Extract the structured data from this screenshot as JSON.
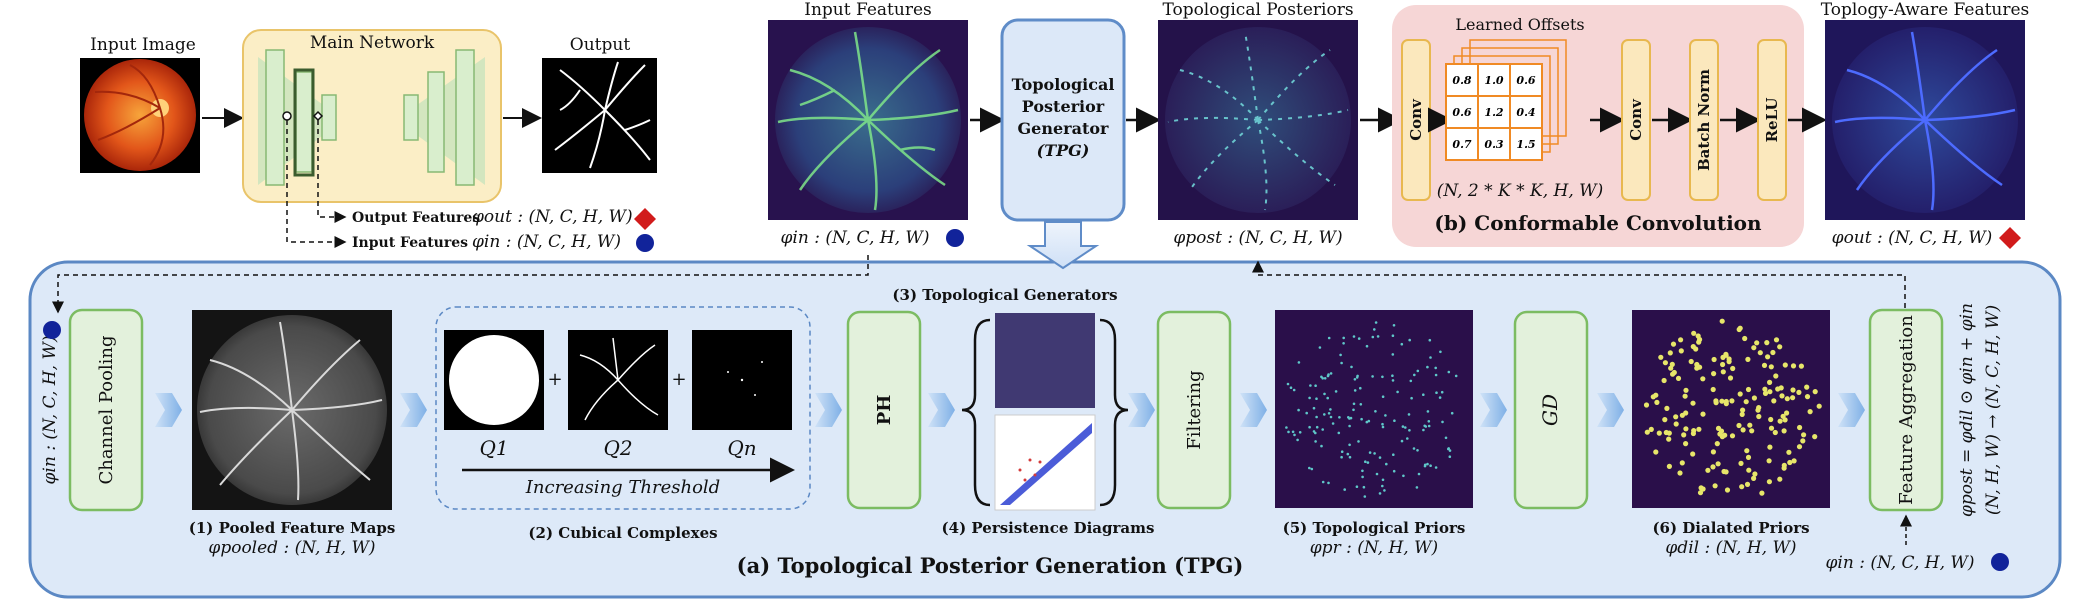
{
  "top": {
    "input_image_label": "Input Image",
    "main_network_label": "Main Network",
    "output_label": "Output",
    "output_features_label": "Output Features",
    "output_features_math": "φout : (N, C, H, W)",
    "input_features_label": "Input Features",
    "input_features_math": "φin : (N, C, H, W)",
    "input_features_title": "Input Features",
    "input_features_caption": "φin : (N, C, H, W)",
    "tpg_line1": "Topological",
    "tpg_line2": "Posterior",
    "tpg_line3": "Generator",
    "tpg_line4": "(TPG)",
    "topo_post_title": "Topological  Posteriors",
    "topo_post_caption": "φpost : (N, C, H, W)",
    "topo_aware_title": "Toplogy-Aware Features",
    "topo_aware_caption": "φout : (N, C, H, W)"
  },
  "conformable": {
    "learned_offsets": "Learned Offsets",
    "conv1": "Conv",
    "conv2": "Conv",
    "batch_norm": "Batch Norm",
    "relu": "ReLU",
    "offset_shape": "(N, 2 * K * K, H, W)",
    "title": "(b) Conformable Convolution",
    "grid_values": [
      [
        "0.8",
        "1.0",
        "0.6"
      ],
      [
        "0.6",
        "1.2",
        "0.4"
      ],
      [
        "0.7",
        "0.3",
        "1.5"
      ]
    ]
  },
  "tpg_panel": {
    "title": "(a) Topological Posterior Generation (TPG)",
    "left_input_math": "φin : (N, C, H, W)",
    "channel_pooling": "Channel Pooling",
    "pooled_title": "(1) Pooled Feature Maps",
    "pooled_math": "φpooled : (N, H, W)",
    "q1": "Q1",
    "q2": "Q2",
    "qn": "Qn",
    "plus": "+",
    "increasing_threshold": "Increasing Threshold",
    "cubical_title": "(2) Cubical Complexes",
    "ph": "PH",
    "topo_generators": "(3) Topological Generators",
    "persistence_title": "(4) Persistence Diagrams",
    "filtering": "Filtering",
    "priors_title": "(5) Topological Priors",
    "priors_math": "φpr : (N, H, W)",
    "gd": "GD",
    "dilated_title": "(6) Dialated Priors",
    "dilated_math": "φdil : (N, H, W)",
    "feature_aggregation": "Feature Aggregation",
    "agg_math_line1": "φpost = φdil ⊙ φin + φin",
    "agg_math_line2": "(N, H, W) → (N, C, H, W)",
    "bottom_input_math": "φin : (N, C, H, W)"
  },
  "colors": {
    "panel_fill": "#dde9f8",
    "panel_stroke": "#5b88c4",
    "green_fill": "#e3f1dc",
    "green_stroke": "#7cbc62",
    "pink_fill": "#f6d6d6",
    "orange": "#f08a24",
    "conv_fill": "#fbe8bd",
    "conv_stroke": "#e8b84f",
    "tpg_fill": "#dce8f8",
    "tpg_stroke": "#5f8cc8",
    "red_title": "#a8232a",
    "blue_title": "#1f4e8c",
    "blue_dot": "#11239a",
    "red_diamond": "#d11b1b",
    "yellow_fill": "#fbeec6",
    "yellow_stroke": "#e9c46a"
  }
}
